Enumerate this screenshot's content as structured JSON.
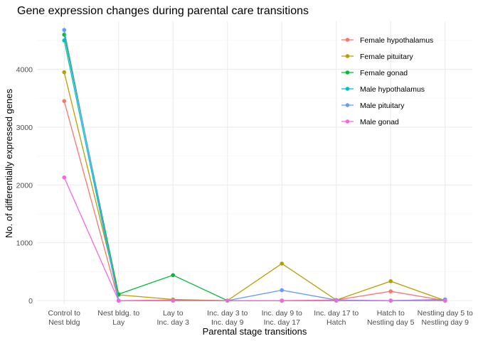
{
  "chart_data": {
    "type": "line",
    "title": "Gene expression changes during parental care transitions",
    "xlabel": "Parental stage transitions",
    "ylabel": "No. of differentially expressed genes",
    "categories": [
      [
        "Control to",
        "Nest bldg"
      ],
      [
        "Nest bldg. to",
        "Lay"
      ],
      [
        "Lay to",
        "Inc. day 3"
      ],
      [
        "Inc. day 3 to",
        "Inc. day 9"
      ],
      [
        "Inc. day 9 to",
        "Inc. day 17"
      ],
      [
        "Inc. day 17 to",
        "Hatch"
      ],
      [
        "Hatch to",
        "Nestling day 5"
      ],
      [
        "Nestling day 5 to",
        "Nestling day 9"
      ]
    ],
    "y_ticks": [
      0,
      1000,
      2000,
      3000,
      4000
    ],
    "ylim": [
      -60,
      4830
    ],
    "grid": true,
    "legend_position": "top-right",
    "series": [
      {
        "name": "Female hypothalamus",
        "color": "#F8766D",
        "values": [
          3450,
          0,
          10,
          0,
          0,
          10,
          160,
          0
        ]
      },
      {
        "name": "Female pituitary",
        "color": "#B79F00",
        "values": [
          3950,
          100,
          20,
          0,
          640,
          10,
          335,
          0
        ]
      },
      {
        "name": "Female gonad",
        "color": "#00BA38",
        "values": [
          4600,
          110,
          440,
          0,
          0,
          0,
          0,
          0
        ]
      },
      {
        "name": "Male hypothalamus",
        "color": "#00BFC4",
        "values": [
          4500,
          0,
          0,
          0,
          0,
          0,
          0,
          20
        ]
      },
      {
        "name": "Male pituitary",
        "color": "#619CFF",
        "values": [
          4680,
          0,
          0,
          0,
          180,
          10,
          0,
          20
        ]
      },
      {
        "name": "Male gonad",
        "color": "#F564E3",
        "values": [
          2130,
          0,
          0,
          0,
          0,
          0,
          0,
          0
        ]
      }
    ]
  }
}
